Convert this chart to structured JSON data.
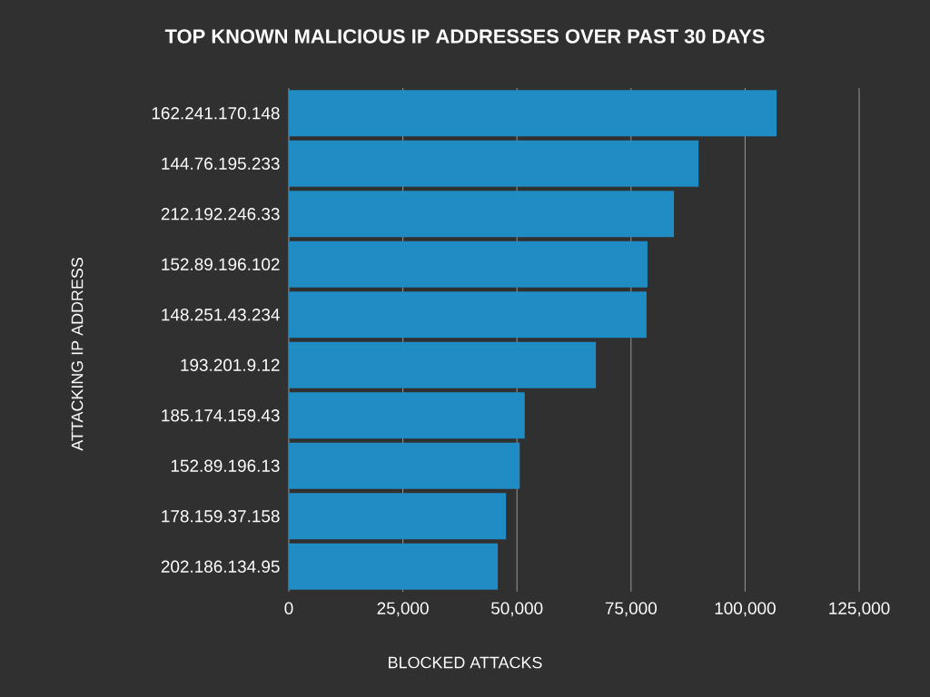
{
  "chart_data": {
    "type": "bar",
    "orientation": "horizontal",
    "title": "TOP KNOWN MALICIOUS IP ADDRESSES OVER PAST 30 DAYS",
    "xlabel": "BLOCKED ATTACKS",
    "ylabel": "ATTACKING IP ADDRESS",
    "categories": [
      "162.241.170.148",
      "144.76.195.233",
      "212.192.246.33",
      "152.89.196.102",
      "148.251.43.234",
      "193.201.9.12",
      "185.174.159.43",
      "152.89.196.13",
      "178.159.37.158",
      "202.186.134.95"
    ],
    "values": [
      106900,
      89800,
      84400,
      78600,
      78400,
      67300,
      51700,
      50600,
      47600,
      45800
    ],
    "color": "#1f8dc4",
    "xlim": [
      0,
      125000
    ],
    "xticks": [
      0,
      {
        "value": 25000,
        "label": "25,000"
      },
      {
        "value": 50000,
        "label": "50,000"
      },
      {
        "value": 75000,
        "label": "75,000"
      },
      {
        "value": 100000,
        "label": "100,000"
      },
      {
        "value": 125000,
        "label": "125,000"
      }
    ],
    "grid": "x"
  }
}
